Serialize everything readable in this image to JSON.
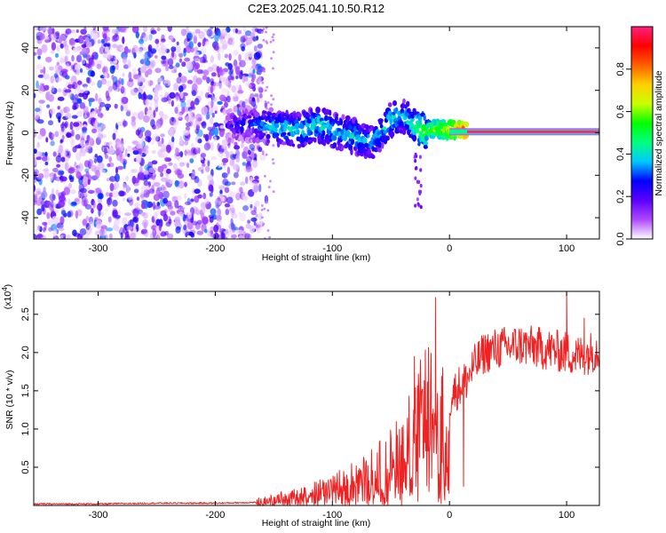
{
  "title": "C2E3.2025.041.10.50.R12",
  "chart_data": [
    {
      "type": "heatmap",
      "xlabel": "Height of straight line (km)",
      "ylabel": "Frequency (Hz)",
      "xlim": [
        -355,
        128
      ],
      "ylim": [
        -50,
        50
      ],
      "xticks": [
        -300,
        -200,
        -100,
        0,
        100
      ],
      "xtick_labels": [
        "-300",
        "-200",
        "-100",
        "0",
        "100"
      ],
      "yticks": [
        -40,
        -20,
        0,
        20,
        40
      ],
      "ytick_labels": [
        "-40",
        "-20",
        "0",
        "20",
        "40"
      ],
      "grid": false,
      "colorbar": {
        "label": "Normalized spectral amplitude",
        "range": [
          0,
          1
        ],
        "ticks": [
          0.0,
          0.2,
          0.4,
          0.6,
          0.8
        ],
        "tick_labels": [
          "0.0",
          "0.2",
          "0.4",
          "0.6",
          "0.8"
        ],
        "stops": [
          "#ffffff",
          "#b048ff",
          "#5a00ff",
          "#0000ff",
          "#00c8ff",
          "#00ff80",
          "#00ff00",
          "#c8ff00",
          "#ffd000",
          "#ff6000",
          "#ff0000",
          "#ff2080"
        ]
      },
      "noise_region_x": [
        -355,
        -160
      ],
      "ridge": [
        {
          "x": -190,
          "f": 3,
          "a": 0.22
        },
        {
          "x": -170,
          "f": 4,
          "a": 0.28
        },
        {
          "x": -150,
          "f": 3,
          "a": 0.38
        },
        {
          "x": -130,
          "f": 1,
          "a": 0.4
        },
        {
          "x": -110,
          "f": 4,
          "a": 0.42
        },
        {
          "x": -95,
          "f": 0,
          "a": 0.38
        },
        {
          "x": -80,
          "f": -2,
          "a": 0.4
        },
        {
          "x": -65,
          "f": -4,
          "a": 0.36
        },
        {
          "x": -50,
          "f": 6,
          "a": 0.42
        },
        {
          "x": -40,
          "f": 8,
          "a": 0.38
        },
        {
          "x": -30,
          "f": 3,
          "a": 0.45
        },
        {
          "x": -20,
          "f": 1,
          "a": 0.55
        },
        {
          "x": -10,
          "f": 2,
          "a": 0.6
        },
        {
          "x": 0,
          "f": 1.5,
          "a": 0.7
        },
        {
          "x": 20,
          "f": 0.5,
          "a": 0.95
        },
        {
          "x": 60,
          "f": 0.5,
          "a": 1.0
        },
        {
          "x": 100,
          "f": 0.5,
          "a": 0.98
        },
        {
          "x": 128,
          "f": 0.5,
          "a": 0.95
        }
      ]
    },
    {
      "type": "line",
      "xlabel": "Height of straight line (km)",
      "ylabel": "SNR (10 * v/v)",
      "y_scale_label": "(x10",
      "y_scale_exp": "4",
      "y_scale_close": ")",
      "xlim": [
        -355,
        128
      ],
      "ylim": [
        0,
        2.8
      ],
      "xticks": [
        -300,
        -200,
        -100,
        0,
        100
      ],
      "xtick_labels": [
        "-300",
        "-200",
        "-100",
        "0",
        "100"
      ],
      "yticks": [
        0.5,
        1.0,
        1.5,
        2.0,
        2.5
      ],
      "ytick_labels": [
        "0.5",
        "1.0",
        "1.5",
        "2.0",
        "2.5"
      ],
      "grid": false,
      "series": [
        {
          "color": "#ee2222",
          "x": [
            -355,
            -300,
            -250,
            -200,
            -165,
            -150,
            -130,
            -110,
            -90,
            -70,
            -55,
            -40,
            -30,
            -22,
            -18,
            -14,
            -10,
            -6,
            -2,
            2,
            8,
            15,
            20,
            30,
            40,
            60,
            80,
            100,
            110,
            120,
            128
          ],
          "y": [
            0.02,
            0.02,
            0.03,
            0.03,
            0.04,
            0.1,
            0.15,
            0.22,
            0.32,
            0.45,
            0.6,
            0.8,
            1.1,
            1.3,
            1.5,
            1.15,
            1.0,
            1.2,
            1.3,
            1.45,
            1.55,
            1.65,
            1.8,
            2.0,
            2.05,
            2.1,
            2.05,
            2.0,
            1.95,
            2.0,
            2.05
          ]
        }
      ],
      "spikes": [
        {
          "x": -12,
          "y": 2.72
        },
        {
          "x": -30,
          "y": 1.95
        },
        {
          "x": 100,
          "y": 2.78
        },
        {
          "x": 115,
          "y": 2.45
        },
        {
          "x": 12,
          "y": 0.25
        }
      ]
    }
  ]
}
